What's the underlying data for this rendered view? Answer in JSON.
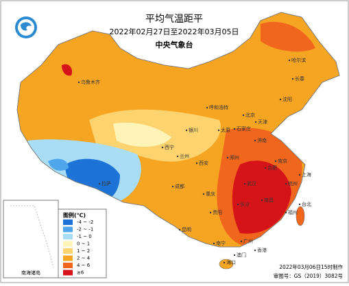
{
  "header": {
    "title": "平均气温距平",
    "subtitle": "2022年02月27日至2022年03月05日",
    "org": "中央气象台"
  },
  "legend": {
    "title": "图例(℃)",
    "items": [
      {
        "label": "-4 ~ -2",
        "color": "#1e74d6"
      },
      {
        "label": "-2 ~ -1",
        "color": "#4fa6ea"
      },
      {
        "label": "-1 ~ 0",
        "color": "#a9ddf6"
      },
      {
        "label": "0 ~ 1",
        "color": "#fff4b8"
      },
      {
        "label": "1 ~ 2",
        "color": "#fcd36e"
      },
      {
        "label": "2 ~ 4",
        "color": "#f6a523"
      },
      {
        "label": "4 ~ 6",
        "color": "#f0661c"
      },
      {
        "label": "≥6",
        "color": "#d5141a"
      }
    ]
  },
  "cities": [
    "乌鲁木齐",
    "哈尔滨",
    "长春",
    "沈阳",
    "呼和浩特",
    "北京",
    "天津",
    "银川",
    "太原",
    "石家庄",
    "济南",
    "西宁",
    "兰州",
    "郑州",
    "西安",
    "南京",
    "上海",
    "合肥",
    "武汉",
    "成都",
    "重庆",
    "拉萨",
    "杭州",
    "长沙",
    "南昌",
    "贵阳",
    "福州",
    "台北",
    "昆明",
    "南宁",
    "广州",
    "香港",
    "澳门",
    "海口"
  ],
  "inset": {
    "label": "南海诸岛"
  },
  "footer": {
    "made": "2022年03月06日15时制作",
    "approval": "审图号：GS（2019）3082号"
  }
}
